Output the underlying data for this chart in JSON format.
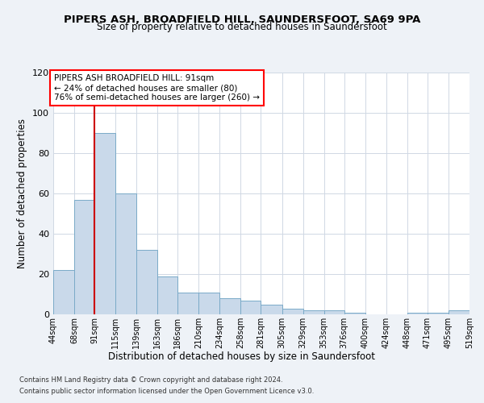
{
  "title": "PIPERS ASH, BROADFIELD HILL, SAUNDERSFOOT, SA69 9PA",
  "subtitle": "Size of property relative to detached houses in Saundersfoot",
  "xlabel": "Distribution of detached houses by size in Saundersfoot",
  "ylabel": "Number of detached properties",
  "bar_color": "#c9d9ea",
  "bar_edge_color": "#7aaac8",
  "vline_x": 91,
  "vline_color": "#cc0000",
  "annotation_title": "PIPERS ASH BROADFIELD HILL: 91sqm",
  "annotation_line2": "← 24% of detached houses are smaller (80)",
  "annotation_line3": "76% of semi-detached houses are larger (260) →",
  "bins": [
    44,
    68,
    91,
    115,
    139,
    163,
    186,
    210,
    234,
    258,
    281,
    305,
    329,
    353,
    376,
    400,
    424,
    448,
    471,
    495,
    519
  ],
  "values": [
    22,
    57,
    90,
    60,
    32,
    19,
    11,
    11,
    8,
    7,
    5,
    3,
    2,
    2,
    1,
    0,
    0,
    1,
    1,
    2
  ],
  "ylim": [
    0,
    120
  ],
  "yticks": [
    0,
    20,
    40,
    60,
    80,
    100,
    120
  ],
  "footer_line1": "Contains HM Land Registry data © Crown copyright and database right 2024.",
  "footer_line2": "Contains public sector information licensed under the Open Government Licence v3.0.",
  "bg_color": "#eef2f7",
  "plot_bg_color": "#ffffff",
  "grid_color": "#d0d8e4"
}
